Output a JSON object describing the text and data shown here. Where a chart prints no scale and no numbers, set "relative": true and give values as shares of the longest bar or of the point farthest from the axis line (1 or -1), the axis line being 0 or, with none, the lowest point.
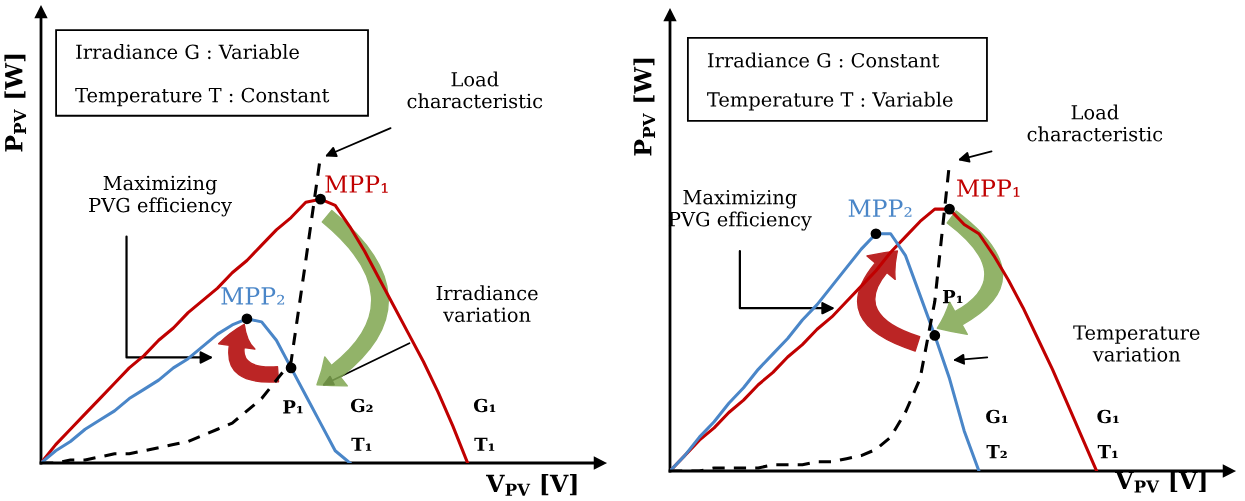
{
  "chart_data": [
    {
      "type": "line",
      "relative": true,
      "tick_labels": false,
      "xlabel": "V$_{PV}$ [V]",
      "ylabel": "P$_{PV}$ [W]",
      "categories": [
        null,
        null,
        null,
        null,
        null,
        null,
        null,
        null,
        null,
        null,
        null,
        null,
        null,
        null,
        null,
        null,
        null,
        null,
        null,
        null,
        null,
        null,
        null,
        null,
        null,
        null,
        null,
        null,
        null,
        null
      ],
      "series": [
        {
          "color": "#c00000",
          "values": [
            0,
            0.06,
            0.11,
            0.16,
            0.21,
            0.26,
            0.31,
            0.35,
            0.4,
            0.44,
            0.49,
            0.53,
            0.57,
            0.62,
            0.66,
            0.71,
            0.76,
            0.8,
            0.85,
            0.86,
            0.84,
            0.77,
            0.69,
            0.6,
            0.51,
            0.42,
            0.33,
            0.23,
            0.12,
            0
          ]
        },
        {
          "color": "#4a86c8",
          "values": [
            0,
            0.04,
            0.07,
            0.11,
            0.14,
            0.17,
            0.21,
            0.24,
            0.27,
            0.31,
            0.34,
            0.38,
            0.42,
            0.45,
            0.47,
            0.46,
            0.4,
            0.31,
            0.22,
            0.13,
            0.04,
            0,
            null,
            null,
            null,
            null,
            null,
            null,
            null,
            null
          ]
        },
        {
          "color": "#000000",
          "line_style": "dashed",
          "values": [
            0,
            0,
            0.01,
            0.01,
            0.02,
            0.03,
            0.03,
            0.04,
            0.05,
            0.06,
            0.07,
            0.09,
            0.11,
            0.13,
            0.17,
            0.21,
            0.27,
            0.33,
            0.66,
            1.0,
            null,
            null,
            null,
            null,
            null,
            null,
            null,
            null,
            null,
            null
          ]
        }
      ],
      "annotations": [
        "Irradiance G : Variable",
        "Temperature T : Constant",
        "Load\ncharacteristic",
        "Maximizing\nPVG efficiency",
        "MPP₁",
        "MPP₂",
        "Irradiance\nvariation",
        "P₁",
        "G₂",
        "T₁",
        "G₁",
        "T₁"
      ]
    },
    {
      "type": "line",
      "relative": true,
      "tick_labels": false,
      "xlabel": "V$_{PV}$ [V]",
      "ylabel": "P$_{PV}$ [W]",
      "categories": [
        null,
        null,
        null,
        null,
        null,
        null,
        null,
        null,
        null,
        null,
        null,
        null,
        null,
        null,
        null,
        null,
        null,
        null,
        null,
        null,
        null,
        null,
        null,
        null,
        null,
        null,
        null,
        null,
        null,
        null
      ],
      "series": [
        {
          "color": "#c00000",
          "values": [
            0,
            0.05,
            0.1,
            0.14,
            0.19,
            0.23,
            0.28,
            0.32,
            0.37,
            0.41,
            0.46,
            0.5,
            0.55,
            0.6,
            0.65,
            0.71,
            0.76,
            0.81,
            0.85,
            0.85,
            0.8,
            0.77,
            0.7,
            0.62,
            0.53,
            0.43,
            0.33,
            0.22,
            0.11,
            0
          ]
        },
        {
          "color": "#4a86c8",
          "values": [
            0,
            0.05,
            0.11,
            0.16,
            0.22,
            0.27,
            0.33,
            0.38,
            0.43,
            0.49,
            0.54,
            0.6,
            0.66,
            0.72,
            0.77,
            0.77,
            0.7,
            0.57,
            0.44,
            0.3,
            0.13,
            0,
            null,
            null,
            null,
            null,
            null,
            null,
            null,
            null
          ]
        },
        {
          "color": "#000000",
          "line_style": "dashed",
          "values": [
            0,
            0,
            0,
            0.01,
            0.01,
            0.01,
            0.01,
            0.02,
            0.02,
            0.02,
            0.03,
            0.03,
            0.04,
            0.05,
            0.07,
            0.11,
            0.19,
            0.3,
            0.55,
            1.0,
            null,
            null,
            null,
            null,
            null,
            null,
            null,
            null,
            null,
            null
          ]
        }
      ],
      "annotations": [
        "Irradiance G : Constant",
        "Temperature T : Variable",
        "Load\ncharacteristic",
        "Maximizing\nPVG efficiency",
        "MPP₁",
        "MPP₂",
        "Temperature\nvariation",
        "P₁",
        "G₁",
        "T₂",
        "G₁",
        "T₁"
      ]
    }
  ]
}
